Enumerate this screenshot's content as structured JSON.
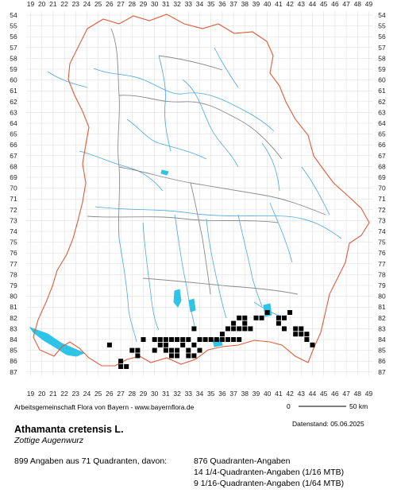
{
  "map": {
    "x_ticks": [
      "19",
      "20",
      "21",
      "22",
      "23",
      "24",
      "25",
      "26",
      "27",
      "28",
      "29",
      "30",
      "31",
      "32",
      "33",
      "34",
      "35",
      "36",
      "37",
      "38",
      "39",
      "40",
      "41",
      "42",
      "43",
      "44",
      "45",
      "46",
      "47",
      "48",
      "49"
    ],
    "y_ticks": [
      "54",
      "55",
      "56",
      "57",
      "58",
      "59",
      "60",
      "61",
      "62",
      "63",
      "64",
      "65",
      "66",
      "67",
      "68",
      "69",
      "70",
      "71",
      "72",
      "73",
      "74",
      "75",
      "76",
      "77",
      "78",
      "79",
      "80",
      "81",
      "82",
      "83",
      "84",
      "85",
      "86",
      "87"
    ],
    "colors": {
      "border": "#e05a3a",
      "district": "#8a8a8a",
      "river": "#4aa8e0",
      "lake": "#2fc3e8",
      "marker": "#000000",
      "grid": "#d0d0d0"
    },
    "occurrences": [
      [
        26,
        84.5
      ],
      [
        27,
        86
      ],
      [
        27,
        86.5
      ],
      [
        27.5,
        86.5
      ],
      [
        28,
        85
      ],
      [
        28.5,
        85
      ],
      [
        28.5,
        85.5
      ],
      [
        29,
        84
      ],
      [
        30,
        84
      ],
      [
        30.5,
        84
      ],
      [
        31,
        84
      ],
      [
        31.5,
        84
      ],
      [
        32,
        84
      ],
      [
        32.5,
        84
      ],
      [
        33,
        84
      ],
      [
        34,
        84
      ],
      [
        34.5,
        84
      ],
      [
        35,
        84
      ],
      [
        35.5,
        84
      ],
      [
        30,
        85
      ],
      [
        30.5,
        84.5
      ],
      [
        31,
        84.5
      ],
      [
        31,
        85
      ],
      [
        31.5,
        85
      ],
      [
        32,
        85
      ],
      [
        32.5,
        84.5
      ],
      [
        33,
        85
      ],
      [
        33.5,
        84.5
      ],
      [
        34,
        85
      ],
      [
        31.5,
        85.5
      ],
      [
        32,
        85.5
      ],
      [
        33,
        85.5
      ],
      [
        33.5,
        85.5
      ],
      [
        33.5,
        83
      ],
      [
        36,
        83.5
      ],
      [
        36.5,
        83
      ],
      [
        37,
        82.5
      ],
      [
        37,
        83
      ],
      [
        37.5,
        83
      ],
      [
        37.5,
        82
      ],
      [
        38,
        82
      ],
      [
        38,
        82.5
      ],
      [
        38,
        83
      ],
      [
        38.5,
        83
      ],
      [
        39,
        82
      ],
      [
        39.5,
        82
      ],
      [
        40,
        81.5
      ],
      [
        41,
        82
      ],
      [
        41.5,
        82
      ],
      [
        41,
        82.5
      ],
      [
        41.5,
        83
      ],
      [
        42,
        81.5
      ],
      [
        42.5,
        83
      ],
      [
        42.5,
        83.5
      ],
      [
        43,
        83
      ],
      [
        43,
        83.5
      ],
      [
        43.5,
        83.5
      ],
      [
        43.5,
        84
      ],
      [
        44,
        84.5
      ],
      [
        36,
        84
      ],
      [
        36.5,
        84
      ],
      [
        37,
        84
      ],
      [
        37.5,
        84
      ]
    ],
    "credit": "Arbeitsgemeinschaft Flora von Bayern - www.bayernflora.de",
    "scale": {
      "left": "0",
      "right": "50 km"
    }
  },
  "info": {
    "date": "Datenstand: 05.06.2025",
    "title": "Athamanta cretensis L.",
    "subtitle": "Zottige Augenwurz",
    "summary": "899 Angaben aus 71 Quadranten, davon:",
    "q1": "876 Quadranten-Angaben",
    "q2": "14 1/4-Quadranten-Angaben (1/16 MTB)",
    "q3": "9 1/16-Quadranten-Angaben (1/64 MTB)"
  }
}
